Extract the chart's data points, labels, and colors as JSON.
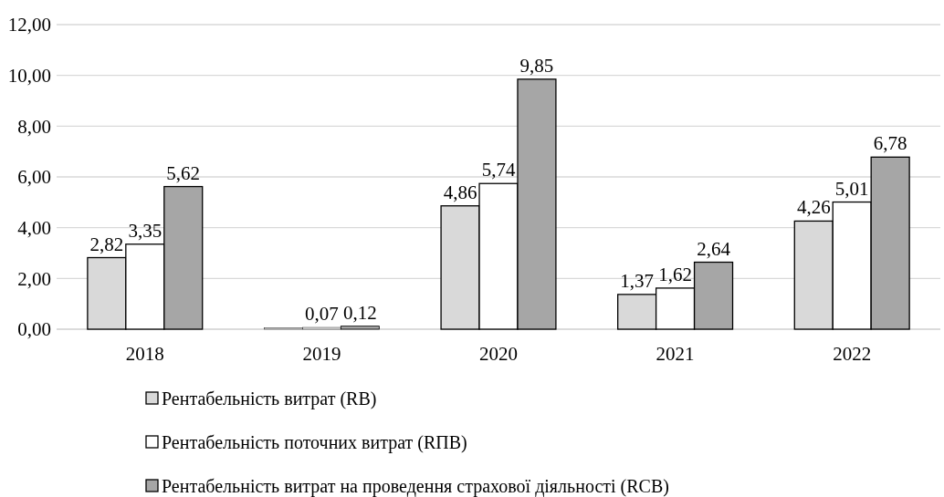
{
  "chart_data": {
    "type": "bar",
    "categories": [
      "2018",
      "2019",
      "2020",
      "2021",
      "2022"
    ],
    "series": [
      {
        "name": "Рентабельність витрат (RB)",
        "color": "#d9d9d9",
        "values": [
          2.82,
          0.06,
          4.86,
          1.37,
          4.26
        ],
        "value_labels": [
          "2,82",
          null,
          "4,86",
          "1,37",
          "4,26"
        ]
      },
      {
        "name": "Рентабельність поточних витрат (RПВ)",
        "color": "#ffffff",
        "values": [
          3.35,
          0.07,
          5.74,
          1.62,
          5.01
        ],
        "value_labels": [
          "3,35",
          "0,07",
          "5,74",
          "1,62",
          "5,01"
        ]
      },
      {
        "name": "Рентабельність витрат на проведення страхової діяльності (RCB)",
        "color": "#a6a6a6",
        "values": [
          5.62,
          0.12,
          9.85,
          2.64,
          6.78
        ],
        "value_labels": [
          "5,62",
          "0,12",
          "9,85",
          "2,64",
          "6,78"
        ]
      }
    ],
    "ylim": [
      0,
      12
    ],
    "yticks": [
      {
        "value": 0,
        "label": "0,00"
      },
      {
        "value": 2,
        "label": "2,00"
      },
      {
        "value": 4,
        "label": "4,00"
      },
      {
        "value": 6,
        "label": "6,00"
      },
      {
        "value": 8,
        "label": "8,00"
      },
      {
        "value": 10,
        "label": "10,00"
      },
      {
        "value": 12,
        "label": "12,00"
      }
    ],
    "grid": "y",
    "legend": "bottom"
  }
}
